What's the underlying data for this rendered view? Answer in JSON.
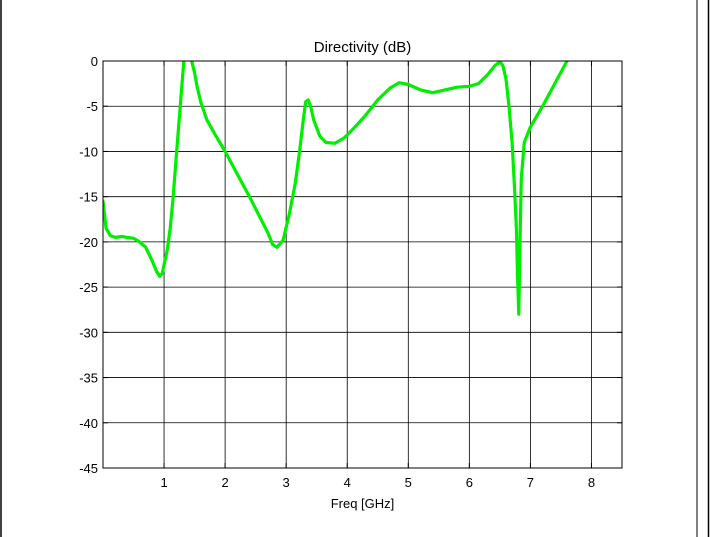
{
  "chart_data": {
    "type": "line",
    "title": "Directivity (dB)",
    "xlabel": "Freq [GHz]",
    "ylabel": "",
    "xlim": [
      0,
      8.5
    ],
    "ylim": [
      -45,
      0
    ],
    "xticks": [
      1,
      2,
      3,
      4,
      5,
      6,
      7,
      8
    ],
    "yticks": [
      0,
      -5,
      -10,
      -15,
      -20,
      -25,
      -30,
      -35,
      -40,
      -45
    ],
    "grid": true,
    "series": [
      {
        "color": "#00ee00",
        "x": [
          0.0,
          0.05,
          0.12,
          0.2,
          0.3,
          0.4,
          0.5,
          0.6,
          0.7,
          0.8,
          0.88,
          0.93,
          0.97,
          1.0,
          1.05,
          1.1,
          1.15,
          1.2,
          1.26,
          1.33,
          1.38,
          1.42,
          1.46,
          1.5,
          1.54,
          1.6,
          1.7,
          1.85,
          2.0,
          2.2,
          2.4,
          2.55,
          2.7,
          2.78,
          2.85,
          2.95,
          3.05,
          3.15,
          3.22,
          3.28,
          3.32,
          3.36,
          3.4,
          3.45,
          3.55,
          3.65,
          3.8,
          3.95,
          4.1,
          4.3,
          4.5,
          4.7,
          4.85,
          5.0,
          5.2,
          5.4,
          5.6,
          5.8,
          6.0,
          6.15,
          6.3,
          6.42,
          6.5,
          6.55,
          6.6,
          6.65,
          6.7,
          6.74,
          6.77,
          6.79,
          6.81,
          6.83,
          6.85,
          6.9,
          7.0,
          7.2,
          7.4,
          7.6
        ],
        "y": [
          -15.5,
          -18.5,
          -19.3,
          -19.5,
          -19.4,
          -19.5,
          -19.6,
          -20.0,
          -20.6,
          -22.0,
          -23.3,
          -23.8,
          -23.5,
          -22.5,
          -21.0,
          -18.5,
          -15.0,
          -10.5,
          -5.5,
          0.5,
          2.0,
          1.0,
          -0.2,
          -1.3,
          -2.8,
          -4.5,
          -6.5,
          -8.3,
          -10.0,
          -12.5,
          -15.0,
          -17.0,
          -19.0,
          -20.3,
          -20.6,
          -19.8,
          -17.0,
          -13.5,
          -10.0,
          -6.5,
          -4.5,
          -4.3,
          -5.0,
          -6.5,
          -8.3,
          -9.0,
          -9.1,
          -8.5,
          -7.5,
          -6.0,
          -4.3,
          -3.0,
          -2.4,
          -2.6,
          -3.2,
          -3.5,
          -3.2,
          -2.9,
          -2.8,
          -2.5,
          -1.5,
          -0.5,
          -0.1,
          -0.5,
          -2.0,
          -5.0,
          -9.0,
          -14.0,
          -18.5,
          -24.0,
          -28.0,
          -20.0,
          -13.0,
          -9.0,
          -7.3,
          -5.0,
          -2.5,
          0.0
        ]
      }
    ]
  }
}
